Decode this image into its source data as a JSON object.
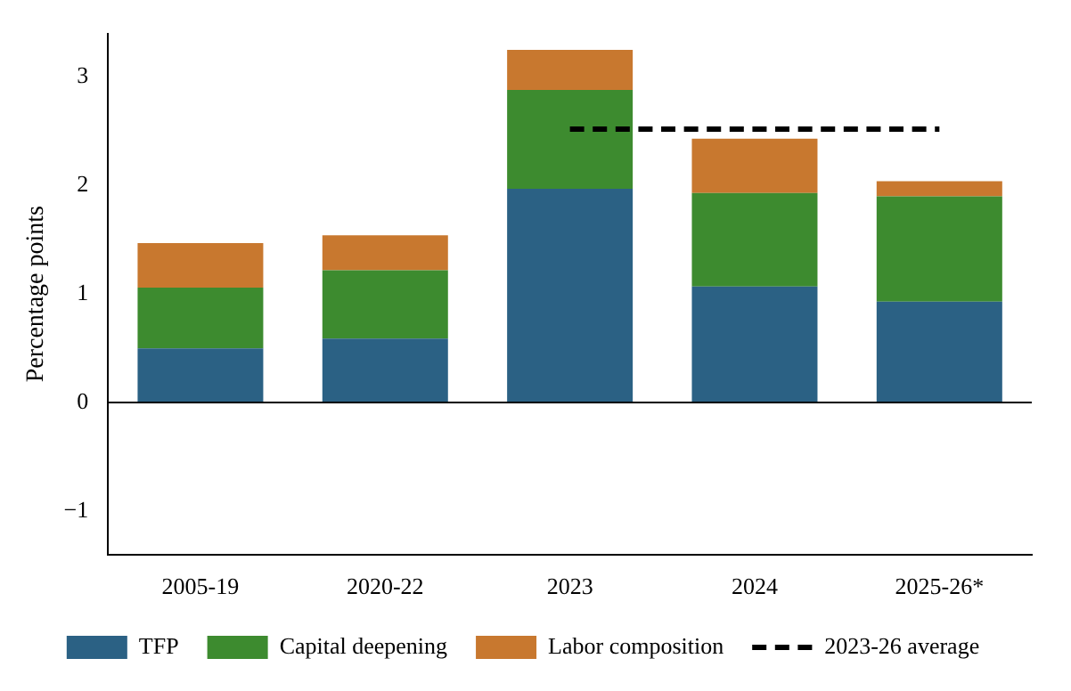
{
  "chart_data": {
    "type": "bar",
    "stacked": true,
    "ylabel": "Percentage points",
    "categories": [
      "2005-19",
      "2020-22",
      "2023",
      "2024",
      "2025-26*"
    ],
    "series": [
      {
        "name": "TFP",
        "color": "#2b6184",
        "values": [
          0.5,
          0.59,
          1.97,
          1.07,
          0.93
        ]
      },
      {
        "name": "Capital deepening",
        "color": "#3d8b2f",
        "values": [
          0.56,
          0.63,
          0.91,
          0.86,
          0.97
        ]
      },
      {
        "name": "Labor composition",
        "color": "#c8782f",
        "values": [
          0.41,
          0.32,
          0.37,
          0.5,
          0.14
        ]
      },
      {
        "name": "2023-26 average",
        "type": "line",
        "color": "#000000",
        "line_style": "dashed",
        "values": [
          null,
          null,
          2.52,
          2.52,
          2.52
        ]
      }
    ],
    "ylim": [
      -1.4,
      3.4
    ],
    "yticks": [
      {
        "value": -1,
        "label": "−1"
      },
      0,
      1,
      2,
      3
    ],
    "grid": false,
    "legend": "bottom"
  }
}
